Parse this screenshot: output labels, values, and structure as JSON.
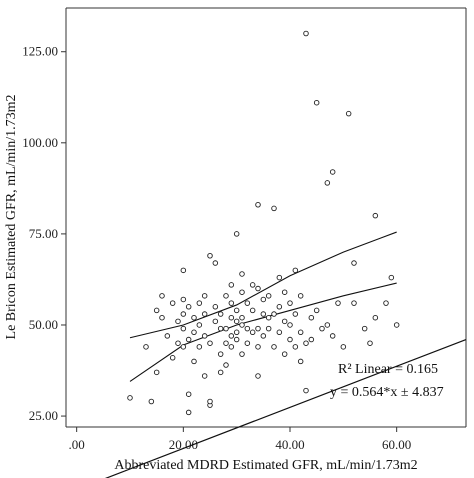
{
  "chart_data": {
    "type": "scatter",
    "title": "",
    "xlabel": "Abbreviated MDRD Estimated GFR, mL/min/1.73m2",
    "ylabel": "Le Bricon Estimated GFR, mL/min/1.73m2",
    "xlim": [
      -2,
      73
    ],
    "ylim": [
      22,
      137
    ],
    "x_ticks": [
      ".00",
      "20.00",
      "40.00",
      "60.00"
    ],
    "x_tick_values": [
      0,
      20,
      40,
      60
    ],
    "y_ticks": [
      "25.00",
      "50.00",
      "75.00",
      "100.00",
      "125.00"
    ],
    "y_tick_values": [
      25,
      50,
      75,
      100,
      125
    ],
    "grid": false,
    "annotations": {
      "r2": "R² Linear = 0.165",
      "equation": "y = 0.564*x ± 4.837"
    },
    "fit_line": {
      "slope": 0.564,
      "intercept": 4.837,
      "x_range": [
        -2,
        73
      ]
    },
    "ci_upper": [
      [
        10,
        46.5
      ],
      [
        20,
        50
      ],
      [
        30,
        55.5
      ],
      [
        40,
        63.5
      ],
      [
        50,
        70
      ],
      [
        60,
        75.5
      ]
    ],
    "ci_lower": [
      [
        10,
        34.5
      ],
      [
        20,
        44.5
      ],
      [
        30,
        50
      ],
      [
        40,
        54
      ],
      [
        50,
        58
      ],
      [
        60,
        61.5
      ]
    ],
    "points": [
      [
        10,
        30
      ],
      [
        13,
        44
      ],
      [
        14,
        29
      ],
      [
        15,
        37
      ],
      [
        15,
        54
      ],
      [
        16,
        58
      ],
      [
        16,
        52
      ],
      [
        17,
        47
      ],
      [
        18,
        41
      ],
      [
        18,
        56
      ],
      [
        19,
        45
      ],
      [
        19,
        51
      ],
      [
        20,
        44
      ],
      [
        20,
        49
      ],
      [
        20,
        53
      ],
      [
        20,
        57
      ],
      [
        20,
        65
      ],
      [
        21,
        31
      ],
      [
        21,
        26
      ],
      [
        21,
        46
      ],
      [
        21,
        55
      ],
      [
        22,
        52
      ],
      [
        22,
        48
      ],
      [
        22,
        40
      ],
      [
        23,
        44
      ],
      [
        23,
        50
      ],
      [
        23,
        56
      ],
      [
        24,
        53
      ],
      [
        24,
        58
      ],
      [
        24,
        47
      ],
      [
        24,
        36
      ],
      [
        25,
        28
      ],
      [
        25,
        29
      ],
      [
        25,
        69
      ],
      [
        25,
        45
      ],
      [
        26,
        67
      ],
      [
        26,
        51
      ],
      [
        26,
        55
      ],
      [
        27,
        42
      ],
      [
        27,
        37
      ],
      [
        27,
        49
      ],
      [
        27,
        53
      ],
      [
        28,
        58
      ],
      [
        28,
        49
      ],
      [
        28,
        45
      ],
      [
        28,
        39
      ],
      [
        29,
        52
      ],
      [
        29,
        61
      ],
      [
        29,
        56
      ],
      [
        29,
        47
      ],
      [
        29,
        44
      ],
      [
        30,
        75
      ],
      [
        30,
        54
      ],
      [
        30,
        48
      ],
      [
        30,
        51
      ],
      [
        30,
        46
      ],
      [
        31,
        52
      ],
      [
        31,
        64
      ],
      [
        31,
        59
      ],
      [
        31,
        42
      ],
      [
        31,
        50
      ],
      [
        32,
        49
      ],
      [
        32,
        45
      ],
      [
        32,
        56
      ],
      [
        33,
        48
      ],
      [
        33,
        54
      ],
      [
        33,
        61
      ],
      [
        34,
        83
      ],
      [
        34,
        60
      ],
      [
        34,
        49
      ],
      [
        34,
        36
      ],
      [
        34,
        44
      ],
      [
        35,
        53
      ],
      [
        35,
        57
      ],
      [
        35,
        47
      ],
      [
        36,
        52
      ],
      [
        36,
        58
      ],
      [
        36,
        49
      ],
      [
        37,
        82
      ],
      [
        37,
        53
      ],
      [
        37,
        44
      ],
      [
        38,
        55
      ],
      [
        38,
        48
      ],
      [
        38,
        63
      ],
      [
        39,
        51
      ],
      [
        39,
        59
      ],
      [
        39,
        42
      ],
      [
        40,
        50
      ],
      [
        40,
        46
      ],
      [
        40,
        56
      ],
      [
        41,
        65
      ],
      [
        41,
        53
      ],
      [
        41,
        44
      ],
      [
        42,
        58
      ],
      [
        42,
        48
      ],
      [
        42,
        40
      ],
      [
        43,
        130
      ],
      [
        43,
        45
      ],
      [
        43,
        32
      ],
      [
        44,
        52
      ],
      [
        44,
        46
      ],
      [
        45,
        111
      ],
      [
        45,
        54
      ],
      [
        46,
        49
      ],
      [
        47,
        89
      ],
      [
        47,
        50
      ],
      [
        48,
        92
      ],
      [
        48,
        47
      ],
      [
        49,
        56
      ],
      [
        50,
        44
      ],
      [
        51,
        108
      ],
      [
        52,
        67
      ],
      [
        52,
        56
      ],
      [
        54,
        49
      ],
      [
        55,
        45
      ],
      [
        56,
        80
      ],
      [
        56,
        52
      ],
      [
        58,
        56
      ],
      [
        59,
        63
      ],
      [
        60,
        50
      ]
    ]
  }
}
